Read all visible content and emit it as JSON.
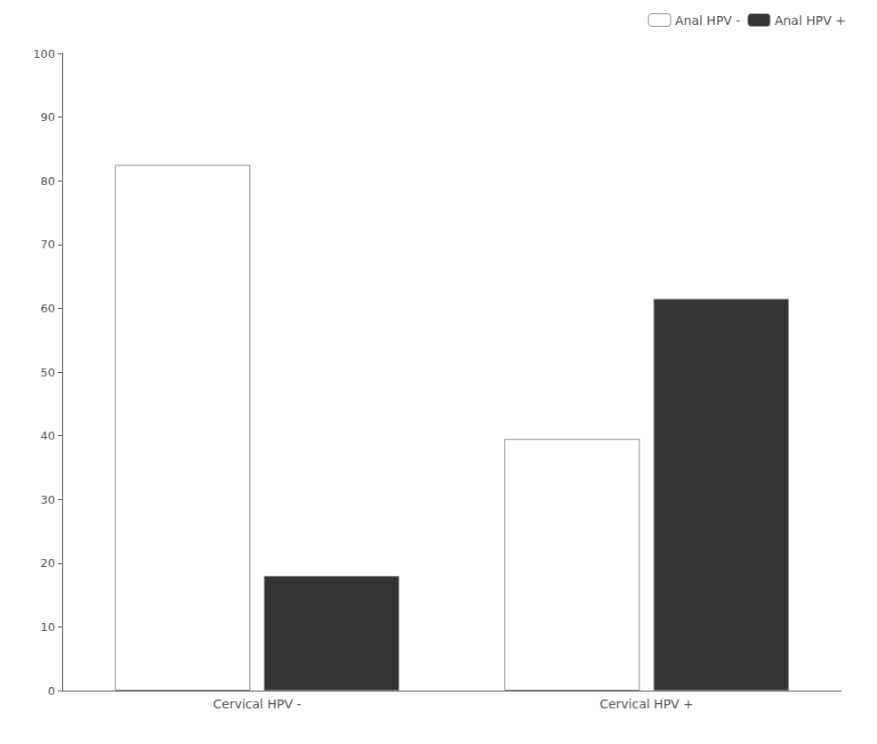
{
  "chart_data": {
    "type": "bar",
    "categories": [
      "Cervical HPV -",
      "Cervical HPV +"
    ],
    "series": [
      {
        "name": "Anal HPV -",
        "color": "#ffffff",
        "values": [
          82.5,
          39.5
        ]
      },
      {
        "name": "Anal HPV +",
        "color": "#333333",
        "values": [
          18.0,
          61.5
        ]
      }
    ],
    "ylim": [
      0,
      100
    ],
    "yticks": [
      0,
      10,
      20,
      30,
      40,
      50,
      60,
      70,
      80,
      90,
      100
    ],
    "grid": false,
    "legend": "upper right"
  }
}
